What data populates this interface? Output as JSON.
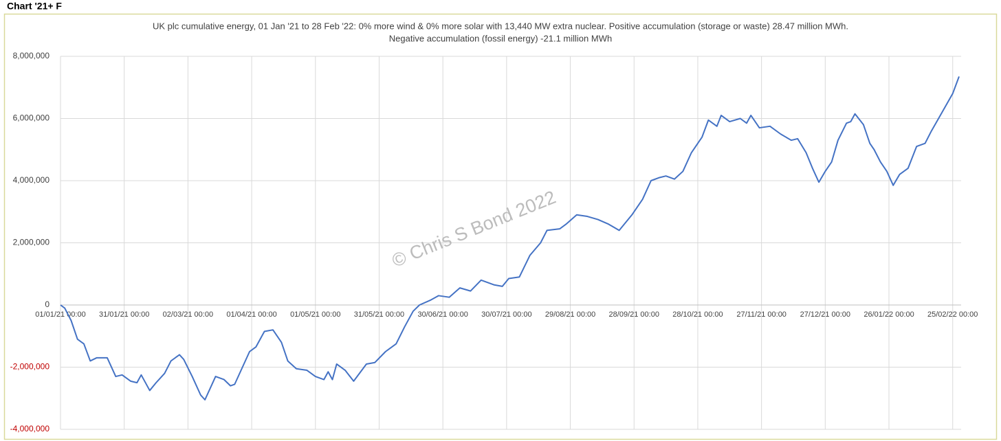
{
  "header": "Chart '21+ F",
  "chart_data": {
    "type": "line",
    "title": [
      "UK plc cumulative energy, 01 Jan '21 to 28 Feb '22: 0% more wind & 0% more solar with 13,440 MW extra nuclear.  Positive accumulation (storage or waste) 28.47 million MWh.",
      "Negative accumulation (fossil energy) -21.1 million MWh"
    ],
    "watermark": "© Chris S Bond  2022",
    "x": [
      "2021-01-01",
      "2021-01-03",
      "2021-01-06",
      "2021-01-09",
      "2021-01-12",
      "2021-01-15",
      "2021-01-18",
      "2021-01-23",
      "2021-01-27",
      "2021-01-30",
      "2021-02-03",
      "2021-02-06",
      "2021-02-08",
      "2021-02-12",
      "2021-02-15",
      "2021-02-19",
      "2021-02-22",
      "2021-02-26",
      "2021-02-28",
      "2021-03-04",
      "2021-03-08",
      "2021-03-10",
      "2021-03-13",
      "2021-03-15",
      "2021-03-19",
      "2021-03-22",
      "2021-03-24",
      "2021-03-27",
      "2021-03-31",
      "2021-04-03",
      "2021-04-07",
      "2021-04-11",
      "2021-04-15",
      "2021-04-18",
      "2021-04-22",
      "2021-04-27",
      "2021-05-01",
      "2021-05-05",
      "2021-05-07",
      "2021-05-09",
      "2021-05-11",
      "2021-05-15",
      "2021-05-19",
      "2021-05-25",
      "2021-05-29",
      "2021-06-03",
      "2021-06-08",
      "2021-06-12",
      "2021-06-16",
      "2021-06-19",
      "2021-06-24",
      "2021-06-28",
      "2021-07-03",
      "2021-07-08",
      "2021-07-13",
      "2021-07-18",
      "2021-07-24",
      "2021-07-28",
      "2021-07-31",
      "2021-08-05",
      "2021-08-10",
      "2021-08-15",
      "2021-08-18",
      "2021-08-24",
      "2021-08-27",
      "2021-09-01",
      "2021-09-06",
      "2021-09-11",
      "2021-09-16",
      "2021-09-21",
      "2021-09-27",
      "2021-10-02",
      "2021-10-06",
      "2021-10-10",
      "2021-10-13",
      "2021-10-17",
      "2021-10-21",
      "2021-10-25",
      "2021-10-30",
      "2021-11-02",
      "2021-11-06",
      "2021-11-08",
      "2021-11-12",
      "2021-11-17",
      "2021-11-20",
      "2021-11-22",
      "2021-11-26",
      "2021-12-01",
      "2021-12-06",
      "2021-12-11",
      "2021-12-14",
      "2021-12-18",
      "2021-12-21",
      "2021-12-24",
      "2021-12-27",
      "2021-12-30",
      "2022-01-02",
      "2022-01-06",
      "2022-01-08",
      "2022-01-10",
      "2022-01-14",
      "2022-01-17",
      "2022-01-19",
      "2022-01-22",
      "2022-01-25",
      "2022-01-28",
      "2022-01-31",
      "2022-02-04",
      "2022-02-08",
      "2022-02-12",
      "2022-02-15",
      "2022-02-20",
      "2022-02-25",
      "2022-02-28"
    ],
    "series": [
      {
        "color": "#4472c4",
        "values": [
          0,
          -100000,
          -500000,
          -1100000,
          -1250000,
          -1800000,
          -1700000,
          -1700000,
          -2300000,
          -2250000,
          -2450000,
          -2500000,
          -2250000,
          -2750000,
          -2500000,
          -2200000,
          -1800000,
          -1600000,
          -1750000,
          -2300000,
          -2900000,
          -3050000,
          -2600000,
          -2300000,
          -2400000,
          -2600000,
          -2550000,
          -2100000,
          -1500000,
          -1350000,
          -850000,
          -800000,
          -1200000,
          -1800000,
          -2050000,
          -2100000,
          -2300000,
          -2400000,
          -2150000,
          -2400000,
          -1900000,
          -2100000,
          -2450000,
          -1900000,
          -1850000,
          -1500000,
          -1250000,
          -700000,
          -200000,
          0,
          150000,
          300000,
          250000,
          550000,
          450000,
          800000,
          650000,
          600000,
          850000,
          900000,
          1600000,
          2000000,
          2400000,
          2450000,
          2600000,
          2900000,
          2850000,
          2750000,
          2600000,
          2400000,
          2900000,
          3400000,
          4000000,
          4100000,
          4150000,
          4050000,
          4300000,
          4900000,
          5400000,
          5950000,
          5750000,
          6100000,
          5900000,
          6000000,
          5850000,
          6100000,
          5700000,
          5750000,
          5500000,
          5300000,
          5350000,
          4900000,
          4400000,
          3950000,
          4300000,
          4600000,
          5300000,
          5850000,
          5900000,
          6150000,
          5800000,
          5200000,
          5000000,
          4600000,
          4300000,
          3850000,
          4200000,
          4400000,
          5100000,
          5200000,
          5600000,
          6200000,
          6800000,
          7350000
        ]
      }
    ],
    "xlim": [
      "2021-01-01",
      "2022-02-28"
    ],
    "xticks": [
      {
        "value": "2021-01-01",
        "label": "01/01/21 00:00"
      },
      {
        "value": "2021-01-31",
        "label": "31/01/21 00:00"
      },
      {
        "value": "2021-03-02",
        "label": "02/03/21 00:00"
      },
      {
        "value": "2021-04-01",
        "label": "01/04/21 00:00"
      },
      {
        "value": "2021-05-01",
        "label": "01/05/21 00:00"
      },
      {
        "value": "2021-05-31",
        "label": "31/05/21 00:00"
      },
      {
        "value": "2021-06-30",
        "label": "30/06/21 00:00"
      },
      {
        "value": "2021-07-30",
        "label": "30/07/21 00:00"
      },
      {
        "value": "2021-08-29",
        "label": "29/08/21 00:00"
      },
      {
        "value": "2021-09-28",
        "label": "28/09/21 00:00"
      },
      {
        "value": "2021-10-28",
        "label": "28/10/21 00:00"
      },
      {
        "value": "2021-11-27",
        "label": "27/11/21 00:00"
      },
      {
        "value": "2021-12-27",
        "label": "27/12/21 00:00"
      },
      {
        "value": "2022-01-26",
        "label": "26/01/22 00:00"
      },
      {
        "value": "2022-02-25",
        "label": "25/02/22 00:00"
      }
    ],
    "ylim": [
      -4000000,
      8000000
    ],
    "yticks": [
      {
        "value": -4000000,
        "label": "-4,000,000"
      },
      {
        "value": -2000000,
        "label": "-2,000,000"
      },
      0,
      {
        "value": 2000000,
        "label": "2,000,000"
      },
      {
        "value": 4000000,
        "label": "4,000,000"
      },
      {
        "value": 6000000,
        "label": "6,000,000"
      },
      {
        "value": 8000000,
        "label": "8,000,000"
      }
    ],
    "grid": true,
    "negative_tick_color": "#c00000"
  }
}
